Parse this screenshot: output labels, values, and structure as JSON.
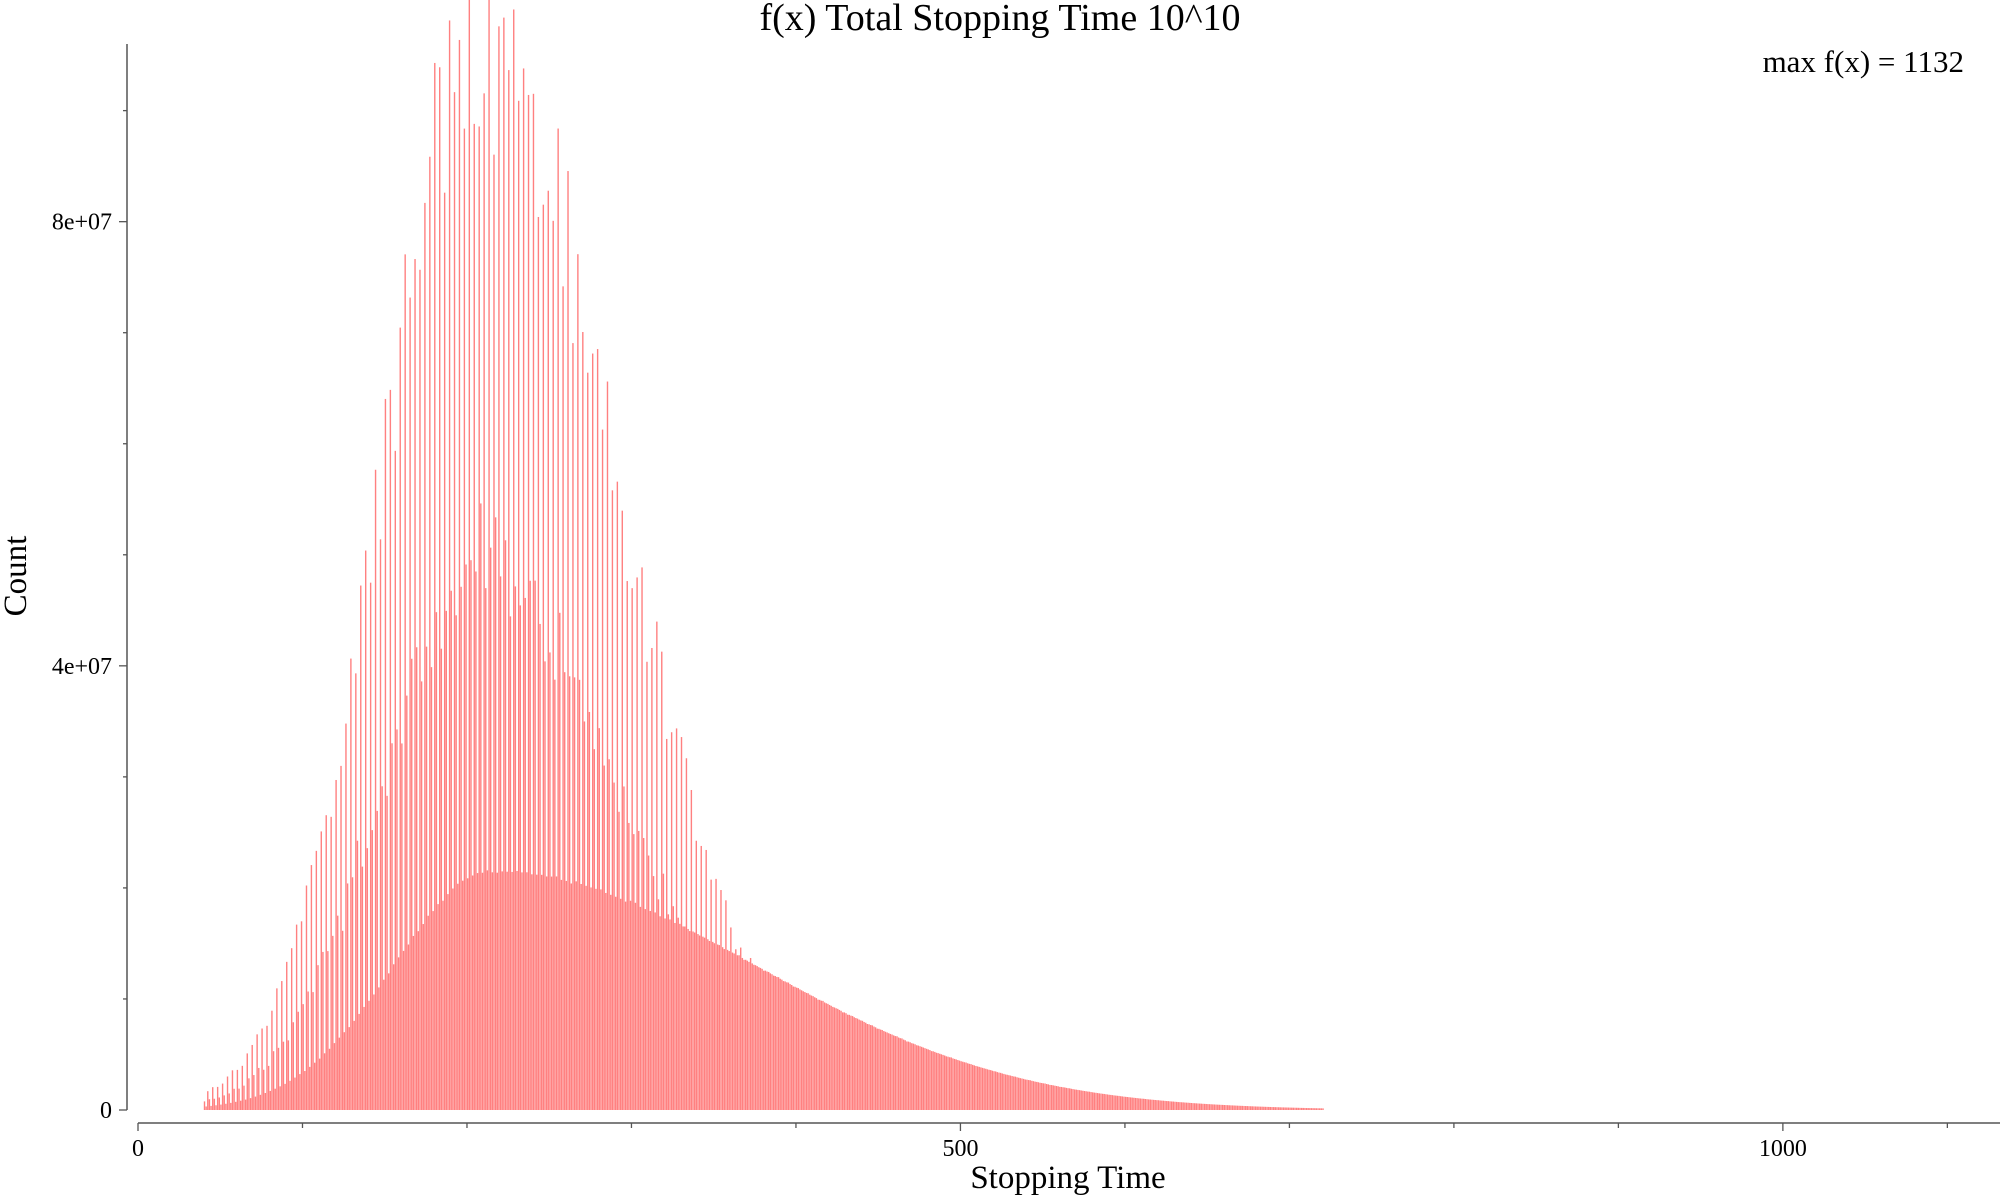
{
  "chart_data": {
    "type": "bar",
    "title": "f(x) Total Stopping Time 10^10",
    "annotation": "max f(x) = 1132",
    "xlabel": "Stopping Time",
    "ylabel": "Count",
    "xlim": [
      0,
      1132
    ],
    "ylim": [
      0,
      96000000
    ],
    "x_ticks": [
      {
        "value": 0,
        "label": "0"
      },
      {
        "value": 500,
        "label": "500"
      },
      {
        "value": 1000,
        "label": "1000"
      }
    ],
    "x_minor_ticks": [
      100,
      200,
      300,
      400,
      600,
      700,
      800,
      900,
      1100
    ],
    "y_ticks": [
      {
        "value": 0,
        "label": "0"
      },
      {
        "value": 40000000,
        "label": "4e+07"
      },
      {
        "value": 80000000,
        "label": "8e+07"
      }
    ],
    "y_minor_ticks": [
      10000000,
      20000000,
      30000000,
      50000000,
      60000000,
      70000000,
      90000000
    ],
    "grid": false,
    "bar_color": "#ff8080",
    "distribution": {
      "stopping_time_range": [
        40,
        720
      ],
      "body_peak_count": 21500000,
      "body_peak_stopping_time": 215,
      "spike_max_count": 96000000,
      "spike_max_stopping_time": 207,
      "spike_period": 3
    }
  }
}
